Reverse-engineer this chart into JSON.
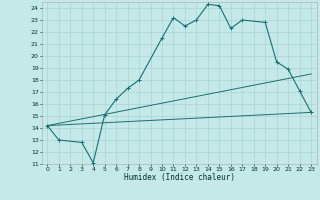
{
  "xlabel": "Humidex (Indice chaleur)",
  "bg_color": "#c5e8e8",
  "grid_color": "#aad4d4",
  "line_color": "#1a7070",
  "xlim": [
    -0.5,
    23.5
  ],
  "ylim": [
    11,
    24.5
  ],
  "xticks": [
    0,
    1,
    2,
    3,
    4,
    5,
    6,
    7,
    8,
    9,
    10,
    11,
    12,
    13,
    14,
    15,
    16,
    17,
    18,
    19,
    20,
    21,
    22,
    23
  ],
  "yticks": [
    11,
    12,
    13,
    14,
    15,
    16,
    17,
    18,
    19,
    20,
    21,
    22,
    23,
    24
  ],
  "curve_x": [
    0,
    1,
    3,
    4,
    5,
    6,
    7,
    8,
    10,
    11,
    12,
    13,
    14,
    15,
    16,
    17,
    19,
    20,
    21,
    22,
    23
  ],
  "curve_y": [
    14.2,
    13.0,
    12.8,
    11.1,
    15.1,
    16.4,
    17.3,
    18.0,
    21.5,
    23.2,
    22.5,
    23.0,
    24.3,
    24.2,
    22.3,
    23.0,
    22.8,
    19.5,
    18.9,
    17.1,
    15.3
  ],
  "line2_x": [
    0,
    23
  ],
  "line2_y": [
    14.2,
    15.3
  ],
  "line3_x": [
    0,
    23
  ],
  "line3_y": [
    14.2,
    18.5
  ]
}
